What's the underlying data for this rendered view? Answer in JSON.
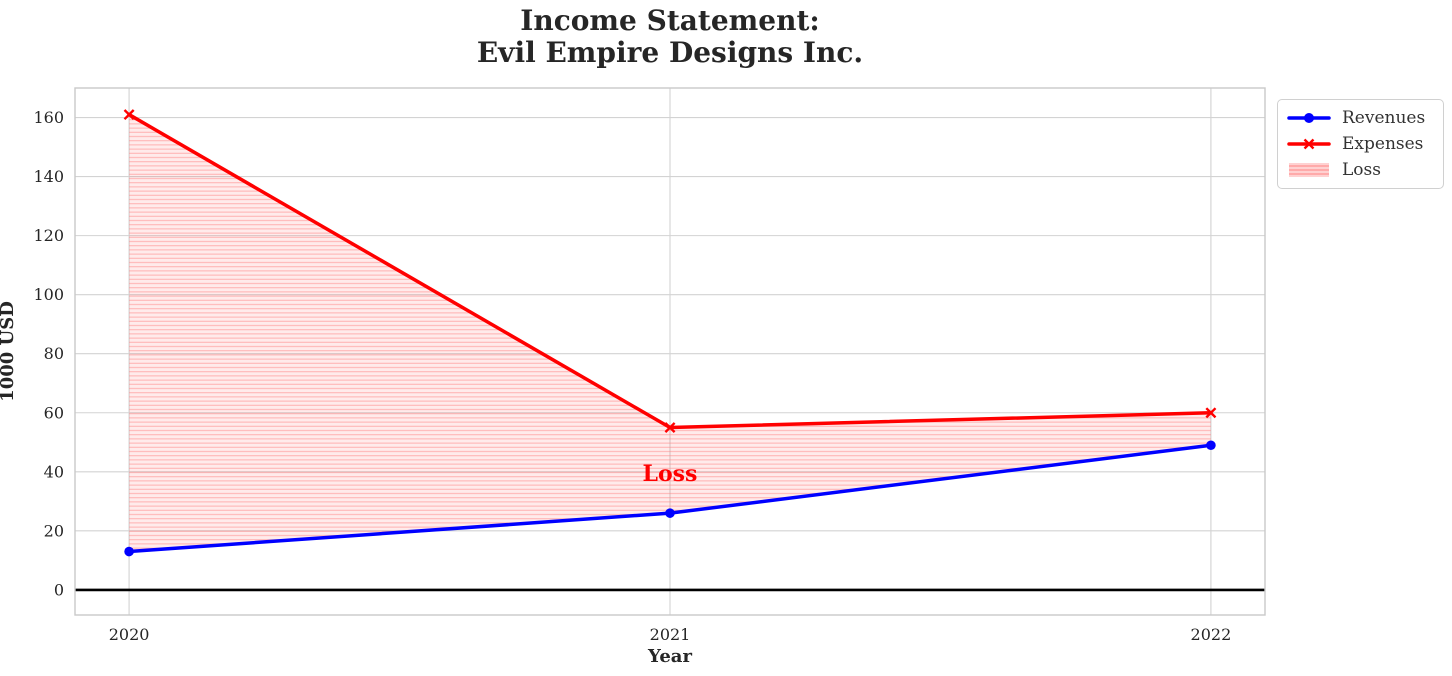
{
  "title": {
    "line1": "Income Statement:",
    "line2": "Evil Empire Designs Inc."
  },
  "chart_data": {
    "type": "line",
    "title": "Income Statement: Evil Empire Designs Inc.",
    "xlabel": "Year",
    "ylabel": "1000 USD",
    "x": [
      2020,
      2021,
      2022
    ],
    "xtick_labels": [
      "2020",
      "2021",
      "2022"
    ],
    "yticks": [
      0,
      20,
      40,
      60,
      80,
      100,
      120,
      140,
      160
    ],
    "xlim": [
      2019.9,
      2022.1
    ],
    "ylim": [
      -8.5,
      170
    ],
    "grid": true,
    "zero_line_y": 0,
    "series": [
      {
        "name": "Revenues",
        "color": "#0000ff",
        "marker": "circle",
        "values": [
          13,
          26,
          49
        ]
      },
      {
        "name": "Expenses",
        "color": "#ff0000",
        "marker": "x",
        "values": [
          161,
          55,
          60
        ]
      }
    ],
    "loss_fill": {
      "name": "Loss",
      "upper_series": "Expenses",
      "lower_series": "Revenues",
      "base_color": "#ff0000",
      "base_opacity": 0.08,
      "hatch": "horizontal",
      "hatch_color": "#ff8080",
      "hatch_opacity": 0.55
    },
    "annotation": {
      "text": "Loss",
      "x": 2021,
      "y": 40,
      "color": "#ff0000"
    },
    "legend": {
      "position": "upper-right-outside",
      "entries": [
        "Revenues",
        "Expenses",
        "Loss"
      ]
    },
    "colors": {
      "grid": "#d3d3d3",
      "frame": "#c9c9c9",
      "text": "#262626",
      "zero_line": "#000000"
    }
  }
}
